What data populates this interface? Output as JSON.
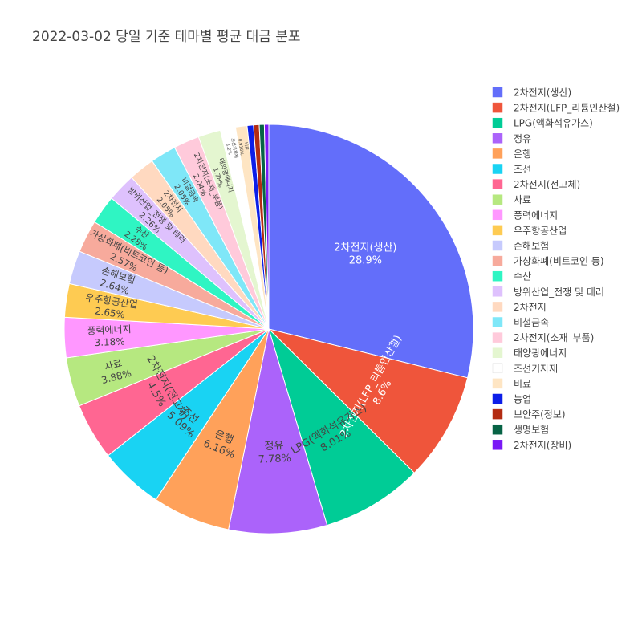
{
  "chart_data": {
    "type": "pie",
    "title": "2022-03-02 당일 기준 테마별 평균 대금 분포",
    "legend_position": "right",
    "slices": [
      {
        "label": "2차전지(생산)",
        "value": 28.9,
        "text": "2차전지(생산)",
        "pct": "28.9%",
        "color": "#636efa"
      },
      {
        "label": "2차전지(LFP_리튬인산철)",
        "value": 8.6,
        "text": "2차전지(LFP_리튬인산철)",
        "pct": "8.6%",
        "color": "#EF553B"
      },
      {
        "label": "LPG(액화석유가스)",
        "value": 8.01,
        "text": "LPG(액화석유가스)",
        "pct": "8.01%",
        "color": "#00cc96"
      },
      {
        "label": "정유",
        "value": 7.78,
        "text": "정유",
        "pct": "7.78%",
        "color": "#ab63fa"
      },
      {
        "label": "은행",
        "value": 6.16,
        "text": "은행",
        "pct": "6.16%",
        "color": "#FFA15A"
      },
      {
        "label": "조선",
        "value": 5.09,
        "text": "조선",
        "pct": "5.09%",
        "color": "#19d3f3"
      },
      {
        "label": "2차전지(전고체)",
        "value": 4.5,
        "text": "2차전지(전고체)",
        "pct": "4.5%",
        "color": "#FF6692"
      },
      {
        "label": "사료",
        "value": 3.88,
        "text": "사료",
        "pct": "3.88%",
        "color": "#B6E880"
      },
      {
        "label": "풍력에너지",
        "value": 3.18,
        "text": "풍력에너지",
        "pct": "3.18%",
        "color": "#FF97FF"
      },
      {
        "label": "우주항공산업",
        "value": 2.65,
        "text": "우주항공산업",
        "pct": "2.65%",
        "color": "#FECB52"
      },
      {
        "label": "손해보험",
        "value": 2.64,
        "text": "손해보험",
        "pct": "2.64%",
        "color": "#c6cafd"
      },
      {
        "label": "가상화폐(비트코인 등)",
        "value": 2.57,
        "text": "가상화폐(비트코인 등)",
        "pct": "2.57%",
        "color": "#f7aa9c"
      },
      {
        "label": "수산",
        "value": 2.28,
        "text": "수산",
        "pct": "2.28%",
        "color": "#2ff5c3"
      },
      {
        "label": "방위산업_전쟁 및 테러",
        "value": 2.26,
        "text": "방위산업_전쟁 및 테러",
        "pct": "2.26%",
        "color": "#dec1fd"
      },
      {
        "label": "2차전지",
        "value": 2.05,
        "text": "2차전지",
        "pct": "2.05%",
        "color": "#ffd9c0"
      },
      {
        "label": "비철금속",
        "value": 2.05,
        "text": "비철금속",
        "pct": "2.05%",
        "color": "#7fe7f8"
      },
      {
        "label": "2차전지(소재_부품)",
        "value": 2.04,
        "text": "2차전지(소재_부품)",
        "pct": "2.04%",
        "color": "#ffcadb"
      },
      {
        "label": "태양광에너지",
        "value": 1.78,
        "text": "태양광에너지",
        "pct": "1.78%",
        "color": "#e4f6d0"
      },
      {
        "label": "조선기자재",
        "value": 1.2,
        "text": "조선기자재",
        "pct": "1.2%",
        "color": "#ffffff"
      },
      {
        "label": "비료",
        "value": 0.916,
        "text": "비료",
        "pct": "0.916%",
        "color": "#fee5c3"
      },
      {
        "label": "농업",
        "value": 0.5,
        "text": "",
        "pct": "",
        "color": "#0c1ee8"
      },
      {
        "label": "보안주(정보)",
        "value": 0.45,
        "text": "",
        "pct": "",
        "color": "#b32c12"
      },
      {
        "label": "생명보험",
        "value": 0.4,
        "text": "",
        "pct": "",
        "color": "#076345"
      },
      {
        "label": "2차전지(장비)",
        "value": 0.35,
        "text": "",
        "pct": "",
        "color": "#7a19f6"
      }
    ]
  }
}
